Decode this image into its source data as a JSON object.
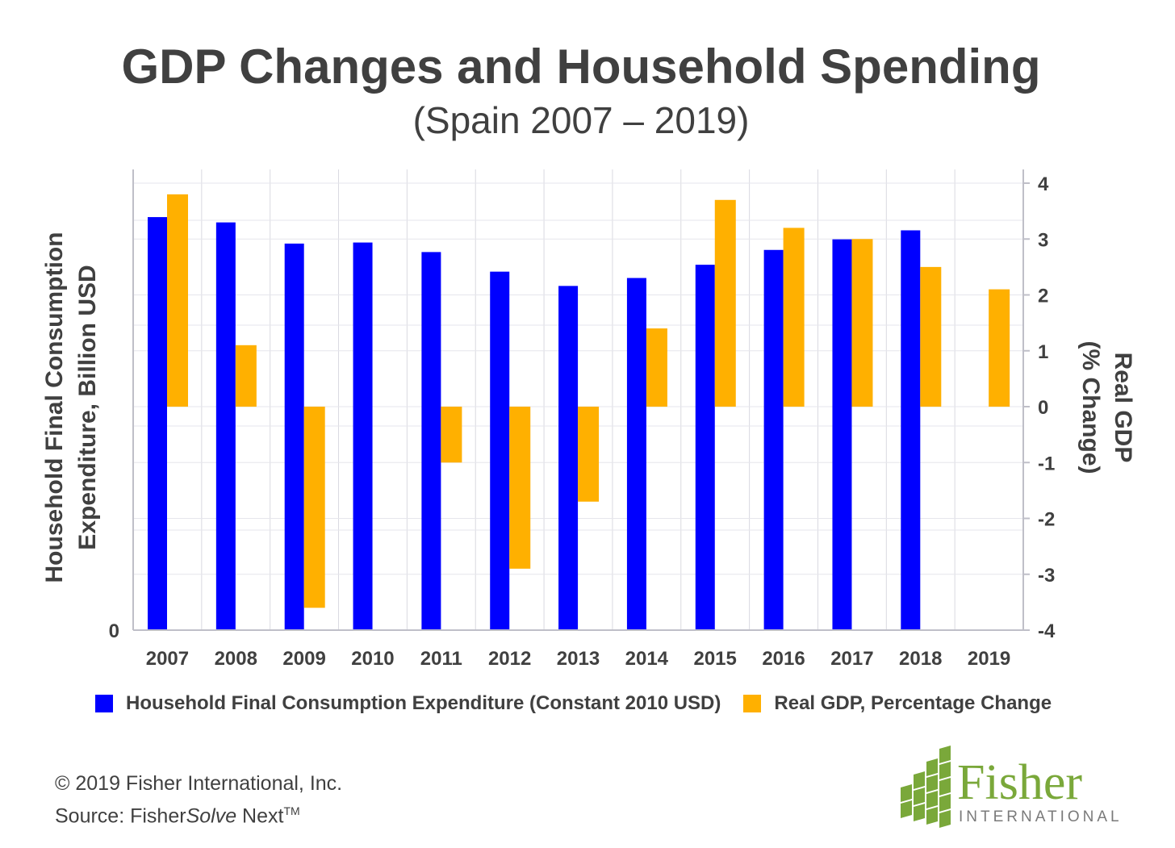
{
  "chart_data": {
    "type": "bar",
    "title": "GDP Changes and Household Spending",
    "subtitle": "(Spain 2007 – 2019)",
    "categories": [
      "2007",
      "2008",
      "2009",
      "2010",
      "2011",
      "2012",
      "2013",
      "2014",
      "2015",
      "2016",
      "2017",
      "2018",
      "2019"
    ],
    "series": [
      {
        "name": "Household Final Consumption Expenditure (Constant 2010 USD)",
        "axis": "left",
        "color": "#0000ff",
        "values": [
          780,
          770,
          730,
          732,
          714,
          677,
          650,
          665,
          690,
          718,
          738,
          755,
          null
        ]
      },
      {
        "name": "Real GDP, Percentage Change",
        "axis": "right",
        "color": "#ffb000",
        "values": [
          3.8,
          1.1,
          -3.6,
          0.0,
          -1.0,
          -2.9,
          -1.7,
          1.4,
          3.7,
          3.2,
          3.0,
          2.5,
          2.1
        ]
      }
    ],
    "ylabel_left": "Household Final Consumption Expenditure, Billion USD",
    "ylabel_left_lines": [
      "Household Final Consumption",
      "Expenditure, Billion USD"
    ],
    "ylabel_right": "Real GDP (% Change)",
    "ylabel_right_lines": [
      "Real GDP",
      "(% Change)"
    ],
    "left_ticks": [
      "0"
    ],
    "ylim_left": [
      0,
      870
    ],
    "right_ticks": [
      -4,
      -3,
      -2,
      -1,
      0,
      1,
      2,
      3,
      4
    ],
    "ylim_right": [
      -4,
      4
    ],
    "grid": true,
    "legend_position": "bottom"
  },
  "footer": {
    "copyright": "© 2019 Fisher International, Inc.",
    "source_prefix": "Source: Fisher",
    "source_italic": "Solve",
    "source_suffix": " Next",
    "trademark": "TM"
  },
  "logo": {
    "name": "Fisher",
    "sub": "INTERNATIONAL",
    "color": "#7aa83a"
  }
}
